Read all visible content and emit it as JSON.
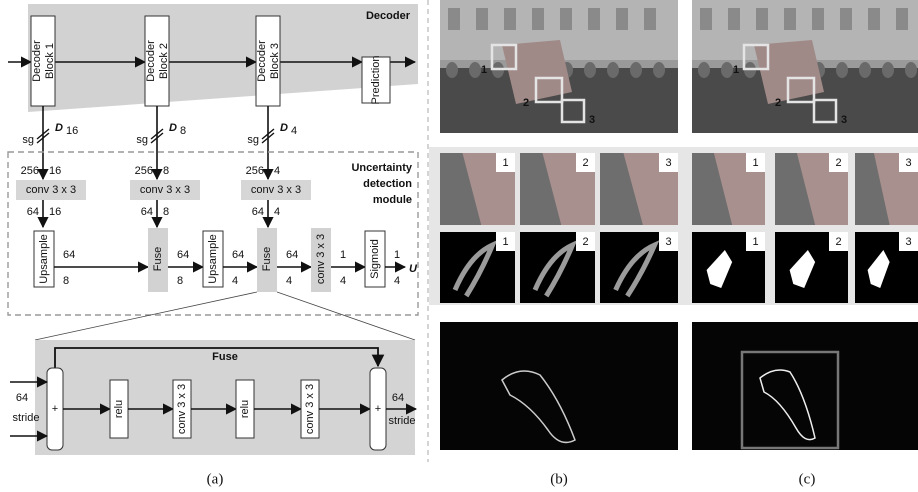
{
  "panel_a": {
    "label": "(a)",
    "decoder": {
      "title": "Decoder",
      "blocks": [
        [
          "Decoder",
          "Block 1"
        ],
        [
          "Decoder",
          "Block 2"
        ],
        [
          "Decoder",
          "Block 3"
        ]
      ],
      "prediction": "Prediction"
    },
    "skips": [
      {
        "op": "sg",
        "symbol": "D",
        "subscript": "16"
      },
      {
        "op": "sg",
        "symbol": "D",
        "subscript": "8"
      },
      {
        "op": "sg",
        "symbol": "D",
        "subscript": "4"
      }
    ],
    "module": {
      "title": [
        "Uncertainty",
        "detection",
        "module"
      ],
      "convs": [
        {
          "label": "conv 3 x 3",
          "in": [
            "256",
            "16"
          ],
          "out": [
            "64",
            "16"
          ]
        },
        {
          "label": "conv 3 x 3",
          "in": [
            "256",
            "8"
          ],
          "out": [
            "64",
            "8"
          ]
        },
        {
          "label": "conv 3 x 3",
          "in": [
            "256",
            "4"
          ],
          "out": [
            "64",
            "4"
          ]
        }
      ],
      "stages": [
        {
          "label": "Upsample",
          "dims": [
            "64",
            "8"
          ]
        },
        {
          "label": "Fuse",
          "dims": [
            "64",
            "8"
          ]
        },
        {
          "label": "Upsample",
          "dims": [
            "64",
            "4"
          ]
        },
        {
          "label": "Fuse",
          "dims": [
            "64",
            "4"
          ]
        },
        {
          "label": "conv 3 x 3",
          "dims": [
            "1",
            "4"
          ]
        },
        {
          "label": "Sigmoid",
          "dims": [
            "1",
            "4"
          ]
        }
      ],
      "output": "U"
    },
    "fuse_detail": {
      "title": "Fuse",
      "inputs": [
        "64",
        "stride"
      ],
      "ops": [
        "+",
        "relu",
        "conv 3 x 3",
        "relu",
        "conv 3 x 3",
        "+"
      ],
      "outputs": [
        "64",
        "stride"
      ]
    }
  },
  "panel_b": {
    "label": "(b)",
    "markers": [
      "1",
      "2",
      "3"
    ],
    "row1": [
      "1",
      "2",
      "3"
    ],
    "row2": [
      "1",
      "2",
      "3"
    ]
  },
  "panel_c": {
    "label": "(c)",
    "markers": [
      "1",
      "2",
      "3"
    ],
    "row1": [
      "1",
      "2",
      "3"
    ],
    "row2": [
      "1",
      "2",
      "3"
    ]
  }
}
